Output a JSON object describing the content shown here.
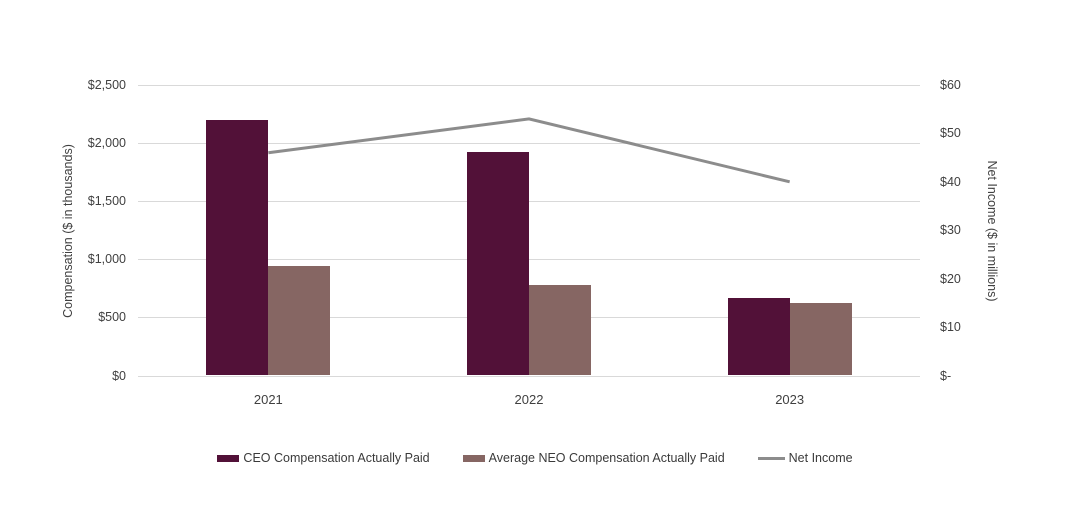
{
  "chart_data": {
    "type": "bar",
    "subtype": "grouped-bar-with-line-combo",
    "categories": [
      "2021",
      "2022",
      "2023"
    ],
    "series": [
      {
        "name": "CEO Compensation Actually Paid",
        "type": "bar",
        "axis": "left",
        "color": "#521138",
        "values": [
          2200,
          1925,
          670
        ]
      },
      {
        "name": "Average NEO Compensation Actually Paid",
        "type": "bar",
        "axis": "left",
        "color": "#866663",
        "values": [
          945,
          775,
          620
        ]
      },
      {
        "name": "Net Income",
        "type": "line",
        "axis": "right",
        "color": "#8c8c8c",
        "values": [
          46,
          53,
          40
        ]
      }
    ],
    "left_axis": {
      "label": "Compensation ($ in thousands)",
      "min": 0,
      "max": 2500,
      "step": 500,
      "ticks": [
        "$2,500",
        "$2,000",
        "$1,500",
        "$1,000",
        "$500",
        "$0"
      ]
    },
    "right_axis": {
      "label": "Net Income ($ in millions)",
      "min": 0,
      "max": 60,
      "step": 10,
      "ticks": [
        "$60",
        "$50",
        "$40",
        "$30",
        "$20",
        "$10",
        "$-"
      ]
    },
    "grid": true,
    "gridline_color": "#d9d9d9",
    "text_color": "#404040",
    "legend_position": "bottom",
    "title": ""
  }
}
